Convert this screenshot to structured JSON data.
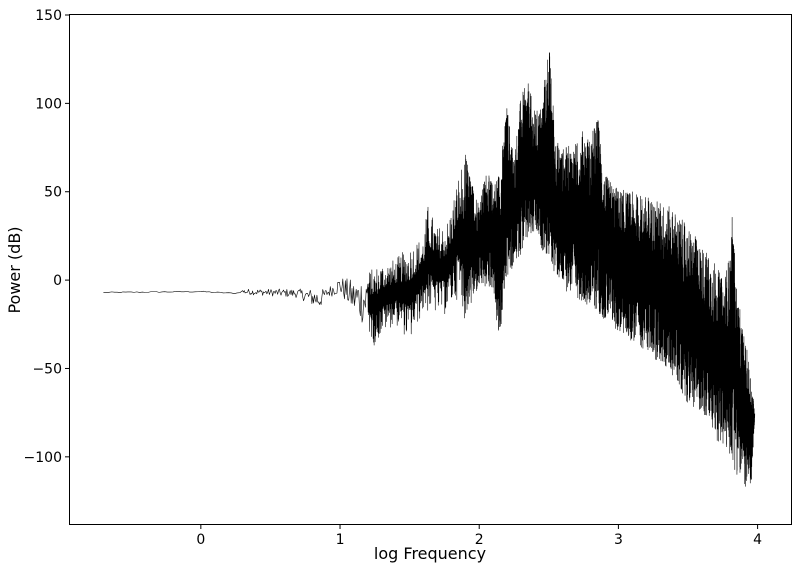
{
  "chart_data": {
    "type": "line",
    "title": "",
    "xlabel": "log Frequency",
    "ylabel": "Power (dB)",
    "xlim": [
      -0.94,
      4.24
    ],
    "ylim": [
      -138,
      150
    ],
    "x_ticks": [
      0,
      1,
      2,
      3,
      4
    ],
    "x_tick_labels": [
      "0",
      "1",
      "2",
      "3",
      "4"
    ],
    "y_ticks": [
      -100,
      -50,
      0,
      50,
      100,
      150
    ],
    "y_tick_labels": [
      "−100",
      "−50",
      "0",
      "50",
      "100",
      "150"
    ],
    "grid": false,
    "legend": "none",
    "line_color": "#000000",
    "series": [
      {
        "description": "power spectrum, upper envelope (approx.)",
        "x": [
          -0.7,
          0.0,
          0.25,
          0.3,
          0.5,
          0.7,
          0.9,
          1.0,
          1.1,
          1.2,
          1.3,
          1.4,
          1.5,
          1.6,
          1.63,
          1.7,
          1.78,
          1.85,
          1.9,
          1.95,
          2.0,
          2.05,
          2.1,
          2.15,
          2.2,
          2.25,
          2.3,
          2.35,
          2.4,
          2.45,
          2.5,
          2.55,
          2.6,
          2.7,
          2.75,
          2.8,
          2.85,
          2.9,
          3.0,
          3.1,
          3.2,
          3.3,
          3.4,
          3.5,
          3.6,
          3.7,
          3.75,
          3.8,
          3.82,
          3.85,
          3.9,
          3.95,
          3.98
        ],
        "y": [
          -7,
          -6,
          -7,
          -5,
          -5,
          -5,
          -5,
          2,
          0,
          5,
          10,
          12,
          20,
          25,
          43,
          30,
          35,
          60,
          72,
          55,
          45,
          62,
          55,
          65,
          100,
          70,
          105,
          112,
          95,
          100,
          137,
          80,
          75,
          78,
          86,
          80,
          95,
          60,
          52,
          50,
          48,
          45,
          40,
          30,
          20,
          10,
          0,
          15,
          40,
          -5,
          -30,
          -50,
          -75
        ]
      },
      {
        "description": "power spectrum, lower envelope (approx.)",
        "x": [
          -0.7,
          0.0,
          0.25,
          0.3,
          0.5,
          0.7,
          0.85,
          0.9,
          1.0,
          1.1,
          1.2,
          1.25,
          1.3,
          1.4,
          1.5,
          1.6,
          1.75,
          1.85,
          1.88,
          2.0,
          2.1,
          2.14,
          2.2,
          2.3,
          2.4,
          2.5,
          2.6,
          2.8,
          3.0,
          3.2,
          3.4,
          3.5,
          3.6,
          3.7,
          3.8,
          3.85,
          3.9,
          3.95,
          3.98
        ],
        "y": [
          -7,
          -7,
          -8,
          -8,
          -9,
          -10,
          -17,
          -10,
          -8,
          -20,
          -28,
          -38,
          -30,
          -25,
          -35,
          -18,
          -20,
          -10,
          -24,
          -5,
          -5,
          -38,
          0,
          15,
          25,
          10,
          -5,
          -15,
          -30,
          -40,
          -55,
          -70,
          -75,
          -90,
          -100,
          -110,
          -115,
          -124,
          -78
        ]
      }
    ]
  }
}
